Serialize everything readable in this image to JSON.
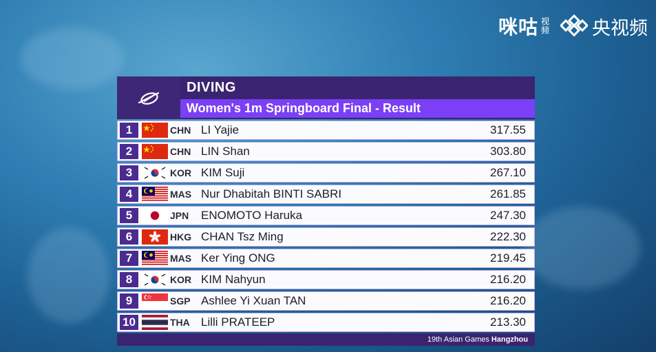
{
  "watermark": {
    "logo1_text": "咪咕",
    "logo1_sub": "视频",
    "logo2_text": "央视频"
  },
  "header": {
    "sport": "DIVING",
    "event": "Women's 1m Springboard Final - Result"
  },
  "results": [
    {
      "rank": "1",
      "flag": "china-flag",
      "noc": "CHN",
      "name": "LI Yajie",
      "score": "317.55"
    },
    {
      "rank": "2",
      "flag": "china-flag",
      "noc": "CHN",
      "name": "LIN Shan",
      "score": "303.80"
    },
    {
      "rank": "3",
      "flag": "korea-flag",
      "noc": "KOR",
      "name": "KIM Suji",
      "score": "267.10"
    },
    {
      "rank": "4",
      "flag": "malaysia-flag",
      "noc": "MAS",
      "name": "Nur Dhabitah BINTI SABRI",
      "score": "261.85"
    },
    {
      "rank": "5",
      "flag": "japan-flag",
      "noc": "JPN",
      "name": "ENOMOTO Haruka",
      "score": "247.30"
    },
    {
      "rank": "6",
      "flag": "hongkong-flag",
      "noc": "HKG",
      "name": "CHAN Tsz Ming",
      "score": "222.30"
    },
    {
      "rank": "7",
      "flag": "malaysia-flag",
      "noc": "MAS",
      "name": "Ker Ying ONG",
      "score": "219.45"
    },
    {
      "rank": "8",
      "flag": "korea-flag",
      "noc": "KOR",
      "name": "KIM Nahyun",
      "score": "216.20"
    },
    {
      "rank": "9",
      "flag": "singapore-flag",
      "noc": "SGP",
      "name": "Ashlee Yi Xuan TAN",
      "score": "216.20"
    },
    {
      "rank": "10",
      "flag": "thailand-flag",
      "noc": "THA",
      "name": "Lilli PRATEEP",
      "score": "213.30"
    }
  ],
  "footer": {
    "games": "19th Asian Games",
    "city": "Hangzhou"
  },
  "colors": {
    "header_bg": "#3a2470",
    "event_bar": "#7b3ff5",
    "rank_box": "#4a2b8f",
    "row_bg": "#fbfbfd"
  }
}
